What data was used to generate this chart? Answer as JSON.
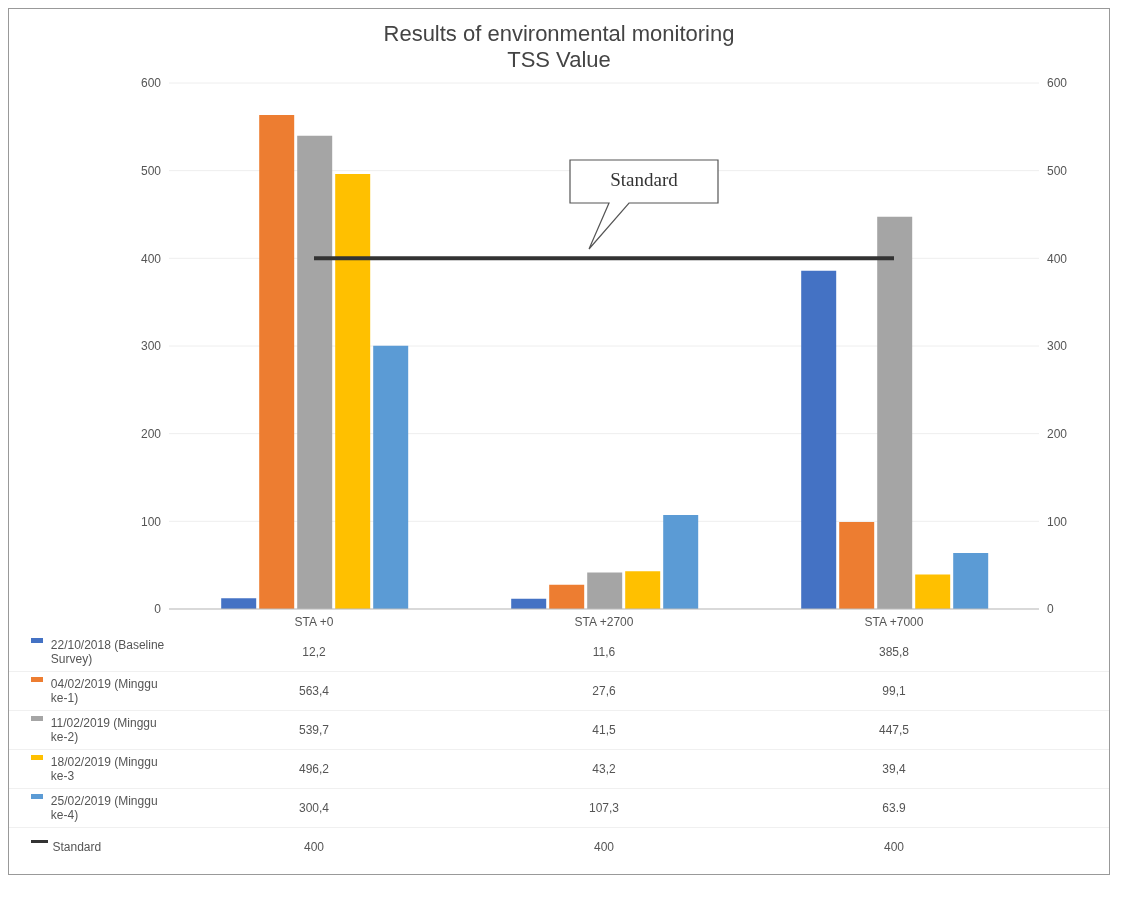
{
  "chart_data": {
    "type": "bar",
    "title": "Results of environmental monitoring",
    "subtitle": "TSS Value",
    "categories": [
      "STA +0",
      "STA +2700",
      "STA +7000"
    ],
    "series": [
      {
        "name": "22/10/2018 (Baseline Survey)",
        "color": "#4472c4",
        "values": [
          12.2,
          11.6,
          385.8
        ],
        "value_labels": [
          "12,2",
          "11,6",
          "385,8"
        ]
      },
      {
        "name": "04/02/2019 (Minggu ke-1)",
        "color": "#ed7d31",
        "values": [
          563.4,
          27.6,
          99.1
        ],
        "value_labels": [
          "563,4",
          "27,6",
          "99,1"
        ]
      },
      {
        "name": "11/02/2019 (Minggu ke-2)",
        "color": "#a5a5a5",
        "values": [
          539.7,
          41.5,
          447.5
        ],
        "value_labels": [
          "539,7",
          "41,5",
          "447,5"
        ]
      },
      {
        "name": "18/02/2019 (Minggu ke-3",
        "color": "#ffc000",
        "values": [
          496.2,
          43.2,
          39.4
        ],
        "value_labels": [
          "496,2",
          "43,2",
          "39,4"
        ]
      },
      {
        "name": "25/02/2019 (Minggu ke-4)",
        "color": "#5b9bd5",
        "values": [
          300.4,
          107.3,
          63.9
        ],
        "value_labels": [
          "300,4",
          "107,3",
          "63.9"
        ]
      },
      {
        "name": "Standard",
        "type": "line",
        "color": "#333333",
        "values": [
          400,
          400,
          400
        ],
        "value_labels": [
          "400",
          "400",
          "400"
        ]
      }
    ],
    "ylim": [
      0,
      600
    ],
    "yticks": [
      0,
      100,
      200,
      300,
      400,
      500,
      600
    ],
    "y2lim": [
      0,
      600
    ],
    "y2ticks": [
      0,
      100,
      200,
      300,
      400,
      500,
      600
    ],
    "annotations": [
      "Standard"
    ],
    "grid": "y",
    "legend": "bottom"
  }
}
